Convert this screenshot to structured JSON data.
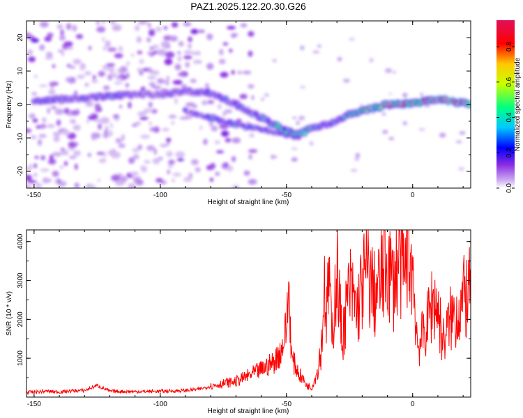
{
  "title": "PAZ1.2025.122.20.30.G26",
  "chart_data": [
    {
      "type": "heatmap",
      "xlabel": "Height of straight line (km)",
      "ylabel": "Frequency (Hz)",
      "xlim": [
        -153,
        23
      ],
      "ylim": [
        -25,
        25
      ],
      "x_ticks": [
        -150,
        -100,
        -50,
        0
      ],
      "y_ticks": [
        -20,
        -10,
        0,
        10,
        20
      ],
      "colorbar": {
        "label": "Normalized spectral amplitude",
        "range": [
          0,
          0.95
        ],
        "ticks": [
          0.0,
          0.2,
          0.4,
          0.6,
          0.8
        ],
        "colors": [
          "#ffffff",
          "#c9a8f0",
          "#8a2be2",
          "#0000ff",
          "#00c8ff",
          "#00ff80",
          "#c8ff00",
          "#ffc800",
          "#ff0000",
          "#e0105a"
        ]
      },
      "ridge": {
        "x": [
          -150,
          -140,
          -130,
          -120,
          -110,
          -100,
          -90,
          -80,
          -70,
          -60,
          -55,
          -50,
          -45,
          -40,
          -35,
          -30,
          -25,
          -20,
          -15,
          -10,
          -5,
          0,
          5,
          10,
          15,
          20,
          23
        ],
        "freq": [
          1,
          1.5,
          2,
          2.5,
          3,
          3,
          4,
          3.5,
          0,
          -4,
          -6,
          -8,
          -9,
          -7,
          -6,
          -5,
          -3,
          -2,
          -1,
          0,
          0,
          0.5,
          1,
          1.5,
          1,
          0.5,
          0
        ],
        "amplitude": [
          0.25,
          0.3,
          0.28,
          0.3,
          0.22,
          0.2,
          0.22,
          0.25,
          0.3,
          0.35,
          0.4,
          0.45,
          0.5,
          0.35,
          0.3,
          0.35,
          0.45,
          0.55,
          0.6,
          0.7,
          0.85,
          0.7,
          0.75,
          0.85,
          0.95,
          0.7,
          0.6
        ]
      },
      "secondary_ridge": {
        "x": [
          -90,
          -80,
          -70,
          -60,
          -50,
          -45
        ],
        "freq": [
          -2,
          -4,
          -6,
          -7.5,
          -9,
          -10
        ],
        "amplitude": [
          0.2,
          0.3,
          0.35,
          0.3,
          0.3,
          0.25
        ]
      }
    },
    {
      "type": "line",
      "xlabel": "Height of straight line (km)",
      "ylabel": "SNR (10 * v/v)",
      "xlim": [
        -153,
        23
      ],
      "ylim": [
        0,
        4300
      ],
      "x_ticks": [
        -150,
        -100,
        -50,
        0
      ],
      "y_ticks": [
        1000,
        2000,
        3000,
        4000
      ],
      "line_color": "#ff0000",
      "series": [
        {
          "x": [
            -153,
            -145,
            -140,
            -135,
            -130,
            -125,
            -120,
            -110,
            -100,
            -90,
            -85,
            -80,
            -75,
            -70,
            -65,
            -60,
            -55,
            -52,
            -50,
            -49,
            -48,
            -45,
            -42,
            -40,
            -38,
            -36,
            -35,
            -34,
            -33,
            -32,
            -31,
            -30,
            -28,
            -25,
            -22,
            -20,
            -18,
            -15,
            -12,
            -10,
            -8,
            -5,
            -3,
            -2,
            -1,
            0,
            2,
            5,
            8,
            10,
            12,
            15,
            18,
            20,
            23
          ],
          "y": [
            120,
            150,
            130,
            160,
            170,
            300,
            150,
            140,
            150,
            170,
            200,
            280,
            350,
            400,
            550,
            700,
            900,
            1200,
            1800,
            2900,
            1000,
            600,
            300,
            250,
            600,
            1400,
            3000,
            2000,
            3400,
            1200,
            2600,
            3300,
            1500,
            2800,
            2200,
            2900,
            3200,
            2600,
            3100,
            3500,
            2900,
            3600,
            3000,
            4250,
            3600,
            3300,
            1300,
            1700,
            2500,
            2300,
            1400,
            2000,
            2200,
            2500,
            2700
          ]
        }
      ]
    }
  ]
}
